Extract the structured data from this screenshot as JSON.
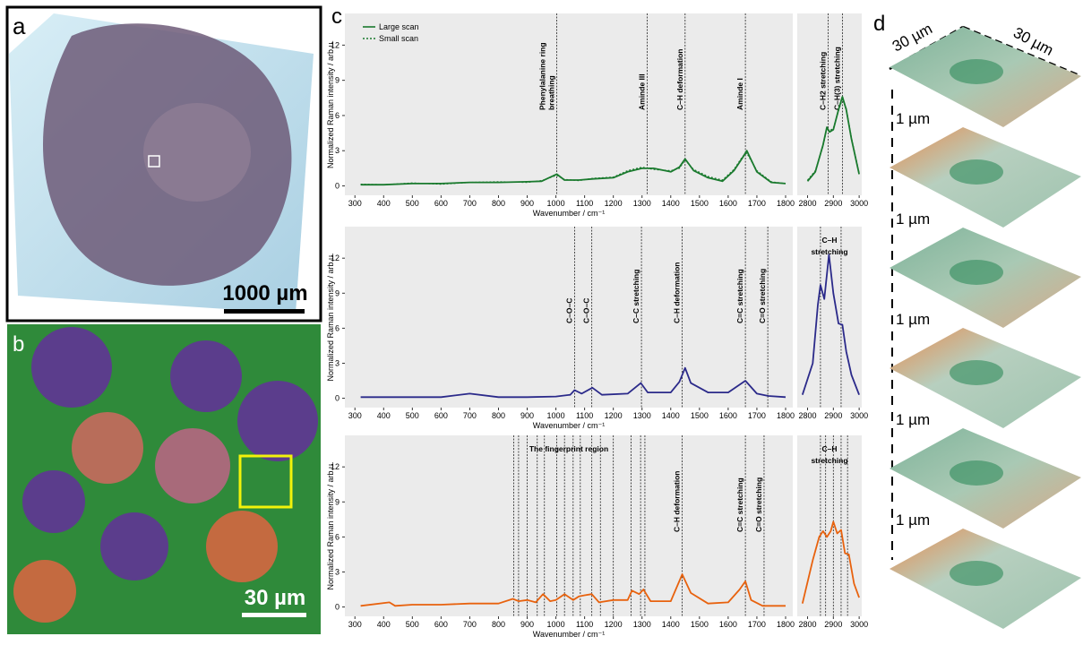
{
  "figure": {
    "a": {
      "label": "a",
      "scale": "1000 µm"
    },
    "b": {
      "label": "b",
      "scale": "30 µm"
    },
    "c": {
      "label": "c"
    },
    "d": {
      "label": "d",
      "width_x": "30 µm",
      "width_y": "30 µm",
      "spacing": [
        "1 µm",
        "1 µm",
        "1 µm",
        "1 µm",
        "1 µm"
      ]
    }
  },
  "chart_data": [
    {
      "type": "line",
      "ylabel": "Normalized Raman intensity / arb.u.",
      "xlabel": "Wavenumber / cm⁻¹",
      "xlim": [
        265,
        1825
      ],
      "xticks": [
        300,
        400,
        500,
        600,
        700,
        800,
        900,
        1000,
        1100,
        1200,
        1300,
        1400,
        1500,
        1600,
        1700,
        1800
      ],
      "ylim": [
        -0.8,
        14.7
      ],
      "yticks": [
        0,
        3,
        6,
        9,
        12
      ],
      "legend": "upper left",
      "x": [
        320,
        400,
        500,
        600,
        700,
        800,
        900,
        950,
        1003,
        1030,
        1080,
        1130,
        1200,
        1250,
        1300,
        1340,
        1400,
        1430,
        1450,
        1480,
        1530,
        1580,
        1620,
        1650,
        1665,
        1700,
        1750,
        1800
      ],
      "series": [
        {
          "name": "Large scan",
          "color": "#1a7a2e",
          "style": "solid",
          "values": [
            0.1,
            0.1,
            0.2,
            0.2,
            0.3,
            0.3,
            0.35,
            0.4,
            1.0,
            0.5,
            0.5,
            0.6,
            0.7,
            1.2,
            1.5,
            1.5,
            1.2,
            1.6,
            2.3,
            1.3,
            0.7,
            0.4,
            1.3,
            2.4,
            3.0,
            1.2,
            0.3,
            0.2
          ]
        },
        {
          "name": "Small scan",
          "color": "#1a7a2e",
          "style": "dotted",
          "values": [
            0.15,
            0.1,
            0.25,
            0.15,
            0.3,
            0.35,
            0.3,
            0.45,
            0.9,
            0.55,
            0.45,
            0.65,
            0.75,
            1.3,
            1.6,
            1.4,
            1.3,
            1.5,
            2.2,
            1.4,
            0.8,
            0.5,
            1.4,
            2.5,
            2.8,
            1.3,
            0.35,
            0.2
          ]
        }
      ],
      "annotations": [
        {
          "x": 1003,
          "label": [
            "Phenylalanine ring",
            "breathing"
          ]
        },
        {
          "x": 1318,
          "label": [
            "Aminde III"
          ]
        },
        {
          "x": 1450,
          "label": [
            "C–H deformation"
          ]
        },
        {
          "x": 1660,
          "label": [
            "Aminde I"
          ]
        }
      ]
    },
    {
      "type": "line",
      "xlim": [
        2760,
        3010
      ],
      "xticks": [
        2800,
        2900,
        3000
      ],
      "ylim": [
        -0.8,
        14.7
      ],
      "x": [
        2800,
        2830,
        2860,
        2875,
        2885,
        2900,
        2920,
        2935,
        2950,
        2970,
        3000
      ],
      "series": [
        {
          "color": "#1a7a2e",
          "style": "solid",
          "values": [
            0.4,
            1.2,
            3.5,
            5.0,
            4.6,
            4.8,
            6.5,
            7.6,
            6.5,
            4.0,
            1.0
          ]
        },
        {
          "color": "#1a7a2e",
          "style": "dotted",
          "values": [
            0.5,
            1.3,
            3.4,
            4.9,
            4.7,
            4.9,
            6.4,
            7.4,
            6.6,
            4.1,
            1.1
          ]
        }
      ],
      "annotations": [
        {
          "x": 2880,
          "label": [
            "C–H2 stretching"
          ]
        },
        {
          "x": 2935,
          "label": [
            "C–H(3) stretching"
          ]
        }
      ]
    },
    {
      "type": "line",
      "ylabel": "Normalized Raman intensity / arb.u.",
      "xlabel": "Wavenumber / cm⁻¹",
      "xlim": [
        265,
        1825
      ],
      "xticks": [
        300,
        400,
        500,
        600,
        700,
        800,
        900,
        1000,
        1100,
        1200,
        1300,
        1400,
        1500,
        1600,
        1700,
        1800
      ],
      "ylim": [
        -0.8,
        14.7
      ],
      "yticks": [
        0,
        3,
        6,
        9,
        12
      ],
      "x": [
        320,
        400,
        500,
        600,
        700,
        800,
        900,
        1000,
        1050,
        1065,
        1090,
        1127,
        1160,
        1250,
        1296,
        1320,
        1400,
        1430,
        1450,
        1470,
        1530,
        1600,
        1660,
        1700,
        1740,
        1800
      ],
      "series": [
        {
          "color": "#2b2a8a",
          "style": "solid",
          "values": [
            0.1,
            0.1,
            0.1,
            0.1,
            0.4,
            0.1,
            0.1,
            0.15,
            0.3,
            0.7,
            0.4,
            0.9,
            0.3,
            0.4,
            1.3,
            0.5,
            0.5,
            1.4,
            2.6,
            1.3,
            0.5,
            0.5,
            1.5,
            0.4,
            0.2,
            0.1
          ]
        }
      ],
      "annotations": [
        {
          "x": 1065,
          "label": [
            "C–O–C"
          ]
        },
        {
          "x": 1125,
          "label": [
            "C–O–C"
          ]
        },
        {
          "x": 1298,
          "label": [
            "C–C stretching"
          ]
        },
        {
          "x": 1440,
          "label": [
            "C–H deformation"
          ]
        },
        {
          "x": 1660,
          "label": [
            "C=C stretching"
          ]
        },
        {
          "x": 1738,
          "label": [
            "C=O stretching"
          ]
        }
      ]
    },
    {
      "type": "line",
      "xlim": [
        2760,
        3010
      ],
      "xticks": [
        2800,
        2900,
        3000
      ],
      "ylim": [
        -0.8,
        14.7
      ],
      "x": [
        2780,
        2820,
        2840,
        2850,
        2865,
        2883,
        2900,
        2920,
        2935,
        2950,
        2970,
        3000
      ],
      "series": [
        {
          "color": "#2b2a8a",
          "style": "solid",
          "values": [
            0.3,
            3.0,
            8,
            9.7,
            8.5,
            12.3,
            9,
            6.4,
            6.3,
            4.0,
            2.0,
            0.3
          ]
        }
      ],
      "note": [
        "C–H",
        "stretching"
      ],
      "annotations": [
        {
          "x": 2850
        },
        {
          "x": 2930
        }
      ]
    },
    {
      "type": "line",
      "ylabel": "Normalized Raman intensity / arb.u.",
      "xlabel": "Wavenumber / cm⁻¹",
      "xlim": [
        265,
        1825
      ],
      "xticks": [
        300,
        400,
        500,
        600,
        700,
        800,
        900,
        1000,
        1100,
        1200,
        1300,
        1400,
        1500,
        1600,
        1700,
        1800
      ],
      "ylim": [
        -0.8,
        14.7
      ],
      "yticks": [
        0,
        3,
        6,
        9,
        12
      ],
      "x": [
        320,
        420,
        440,
        500,
        600,
        700,
        800,
        850,
        870,
        900,
        930,
        955,
        980,
        1000,
        1030,
        1060,
        1080,
        1100,
        1125,
        1150,
        1200,
        1250,
        1265,
        1290,
        1305,
        1330,
        1400,
        1440,
        1470,
        1530,
        1600,
        1640,
        1660,
        1680,
        1720,
        1800
      ],
      "series": [
        {
          "color": "#e8620e",
          "style": "solid",
          "values": [
            0.1,
            0.4,
            0.1,
            0.2,
            0.2,
            0.3,
            0.3,
            0.7,
            0.5,
            0.6,
            0.4,
            1.1,
            0.5,
            0.6,
            1.1,
            0.6,
            0.9,
            1.0,
            1.1,
            0.4,
            0.6,
            0.6,
            1.4,
            1.1,
            1.5,
            0.5,
            0.5,
            2.8,
            1.2,
            0.3,
            0.4,
            1.5,
            2.2,
            0.6,
            0.1,
            0.1
          ]
        }
      ],
      "note": [
        "The fingerprint region"
      ],
      "annotations": [
        {
          "x": 853
        },
        {
          "x": 870
        },
        {
          "x": 900
        },
        {
          "x": 935
        },
        {
          "x": 960
        },
        {
          "x": 1003
        },
        {
          "x": 1030
        },
        {
          "x": 1060
        },
        {
          "x": 1085
        },
        {
          "x": 1125
        },
        {
          "x": 1155
        },
        {
          "x": 1200
        },
        {
          "x": 1262
        },
        {
          "x": 1295
        },
        {
          "x": 1310
        },
        {
          "x": 1440,
          "label": [
            "C–H deformation"
          ]
        },
        {
          "x": 1660,
          "label": [
            "C=C stretching"
          ]
        },
        {
          "x": 1725,
          "label": [
            "C=O stretching"
          ]
        }
      ]
    },
    {
      "type": "line",
      "xlim": [
        2760,
        3010
      ],
      "xticks": [
        2800,
        2900,
        3000
      ],
      "ylim": [
        -0.8,
        14.7
      ],
      "x": [
        2780,
        2820,
        2845,
        2860,
        2875,
        2890,
        2900,
        2915,
        2930,
        2945,
        2960,
        2980,
        3000
      ],
      "series": [
        {
          "color": "#e8620e",
          "style": "solid",
          "values": [
            0.3,
            4,
            6.0,
            6.5,
            6.0,
            6.5,
            7.3,
            6.3,
            6.6,
            4.6,
            4.5,
            2,
            0.8
          ]
        }
      ],
      "note": [
        "C–H",
        "stretching"
      ],
      "annotations": [
        {
          "x": 2850
        },
        {
          "x": 2870
        },
        {
          "x": 2900
        },
        {
          "x": 2930
        },
        {
          "x": 2955
        }
      ]
    }
  ]
}
